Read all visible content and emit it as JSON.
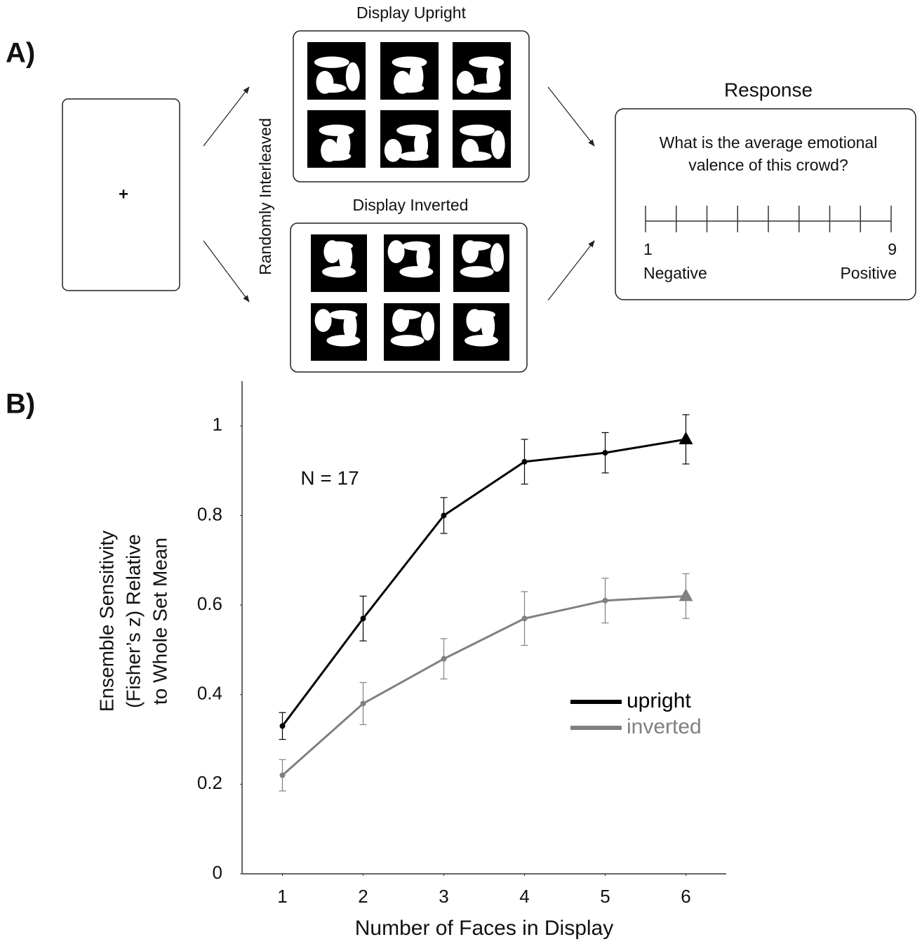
{
  "panel_a": {
    "label": "A)",
    "fixation": "+",
    "interleave_label": "Randomly Interleaved",
    "upright_title": "Display Upright",
    "inverted_title": "Display Inverted",
    "response": {
      "title": "Response",
      "question": [
        "What is the average emotional",
        "valence of this crowd?"
      ],
      "scale_min": "1",
      "scale_max": "9",
      "min_label": "Negative",
      "max_label": "Positive"
    }
  },
  "panel_b": {
    "label": "B)"
  },
  "chart_data": {
    "type": "line",
    "ylabel": [
      "Ensemble Sensitivity",
      "(Fisher’s z) Relative",
      "to Whole Set Mean"
    ],
    "xlabel": "Number of Faces in Display",
    "annotation": "N = 17",
    "x": [
      1,
      2,
      3,
      4,
      5,
      6
    ],
    "xlim": [
      0.5,
      6.5
    ],
    "xticks": [
      1,
      2,
      3,
      4,
      5,
      6
    ],
    "ylim": [
      0,
      1.1
    ],
    "yticks": [
      0,
      0.2,
      0.4,
      0.6,
      0.8,
      1
    ],
    "series": [
      {
        "name": "upright",
        "color": "#000000",
        "values": [
          0.33,
          0.57,
          0.8,
          0.92,
          0.94,
          0.97
        ],
        "errors": [
          0.03,
          0.05,
          0.04,
          0.05,
          0.045,
          0.055
        ]
      },
      {
        "name": "inverted",
        "color": "#808080",
        "values": [
          0.22,
          0.38,
          0.48,
          0.57,
          0.61,
          0.62
        ],
        "errors": [
          0.035,
          0.047,
          0.045,
          0.06,
          0.05,
          0.05
        ]
      }
    ]
  }
}
